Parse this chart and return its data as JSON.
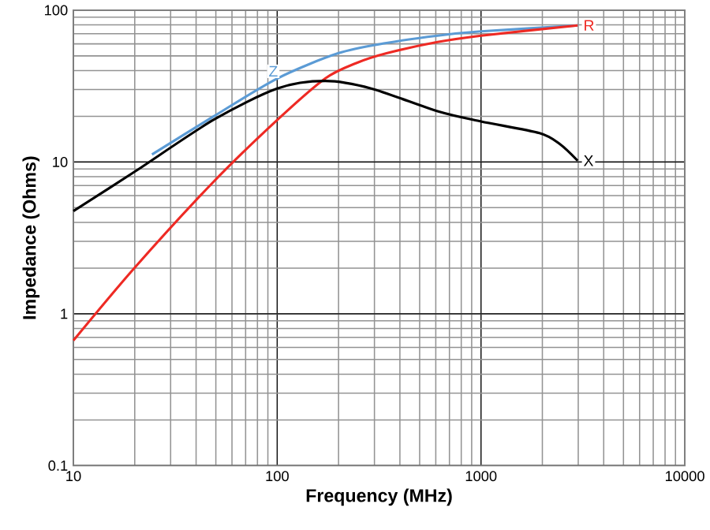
{
  "chart_data": {
    "type": "line",
    "xlabel": "Frequency (MHz)",
    "ylabel": "Impedance (Ohms)",
    "log": "xy",
    "xlim": [
      10,
      10000
    ],
    "ylim": [
      0.1,
      100
    ],
    "xticks": [
      10,
      100,
      1000,
      10000
    ],
    "yticks": [
      0.1,
      1,
      10,
      100
    ],
    "grid": true,
    "legend": false,
    "series": [
      {
        "name": "Z",
        "color": "#5b9bd5",
        "x": [
          24.3,
          48.5,
          100,
          199,
          344,
          612,
          1000,
          2980
        ],
        "values": [
          11.2,
          19.9,
          35.5,
          52,
          60.8,
          68,
          72.5,
          79.4
        ]
      },
      {
        "name": "R",
        "color": "#ee2a24",
        "x": [
          10,
          19.9,
          48.5,
          100,
          172,
          243,
          344,
          612,
          1000,
          2980
        ],
        "values": [
          0.667,
          2.0,
          7.36,
          18.9,
          35.5,
          44.7,
          52,
          61.7,
          68,
          79.4
        ]
      },
      {
        "name": "X",
        "color": "#000000",
        "x": [
          10,
          19.9,
          48.5,
          100,
          172,
          289,
          612,
          1000,
          1937,
          2440,
          2980
        ],
        "values": [
          4.75,
          8.6,
          18.9,
          30.5,
          34.2,
          30.5,
          21.6,
          18.5,
          15.5,
          13.1,
          10.2
        ]
      }
    ]
  }
}
